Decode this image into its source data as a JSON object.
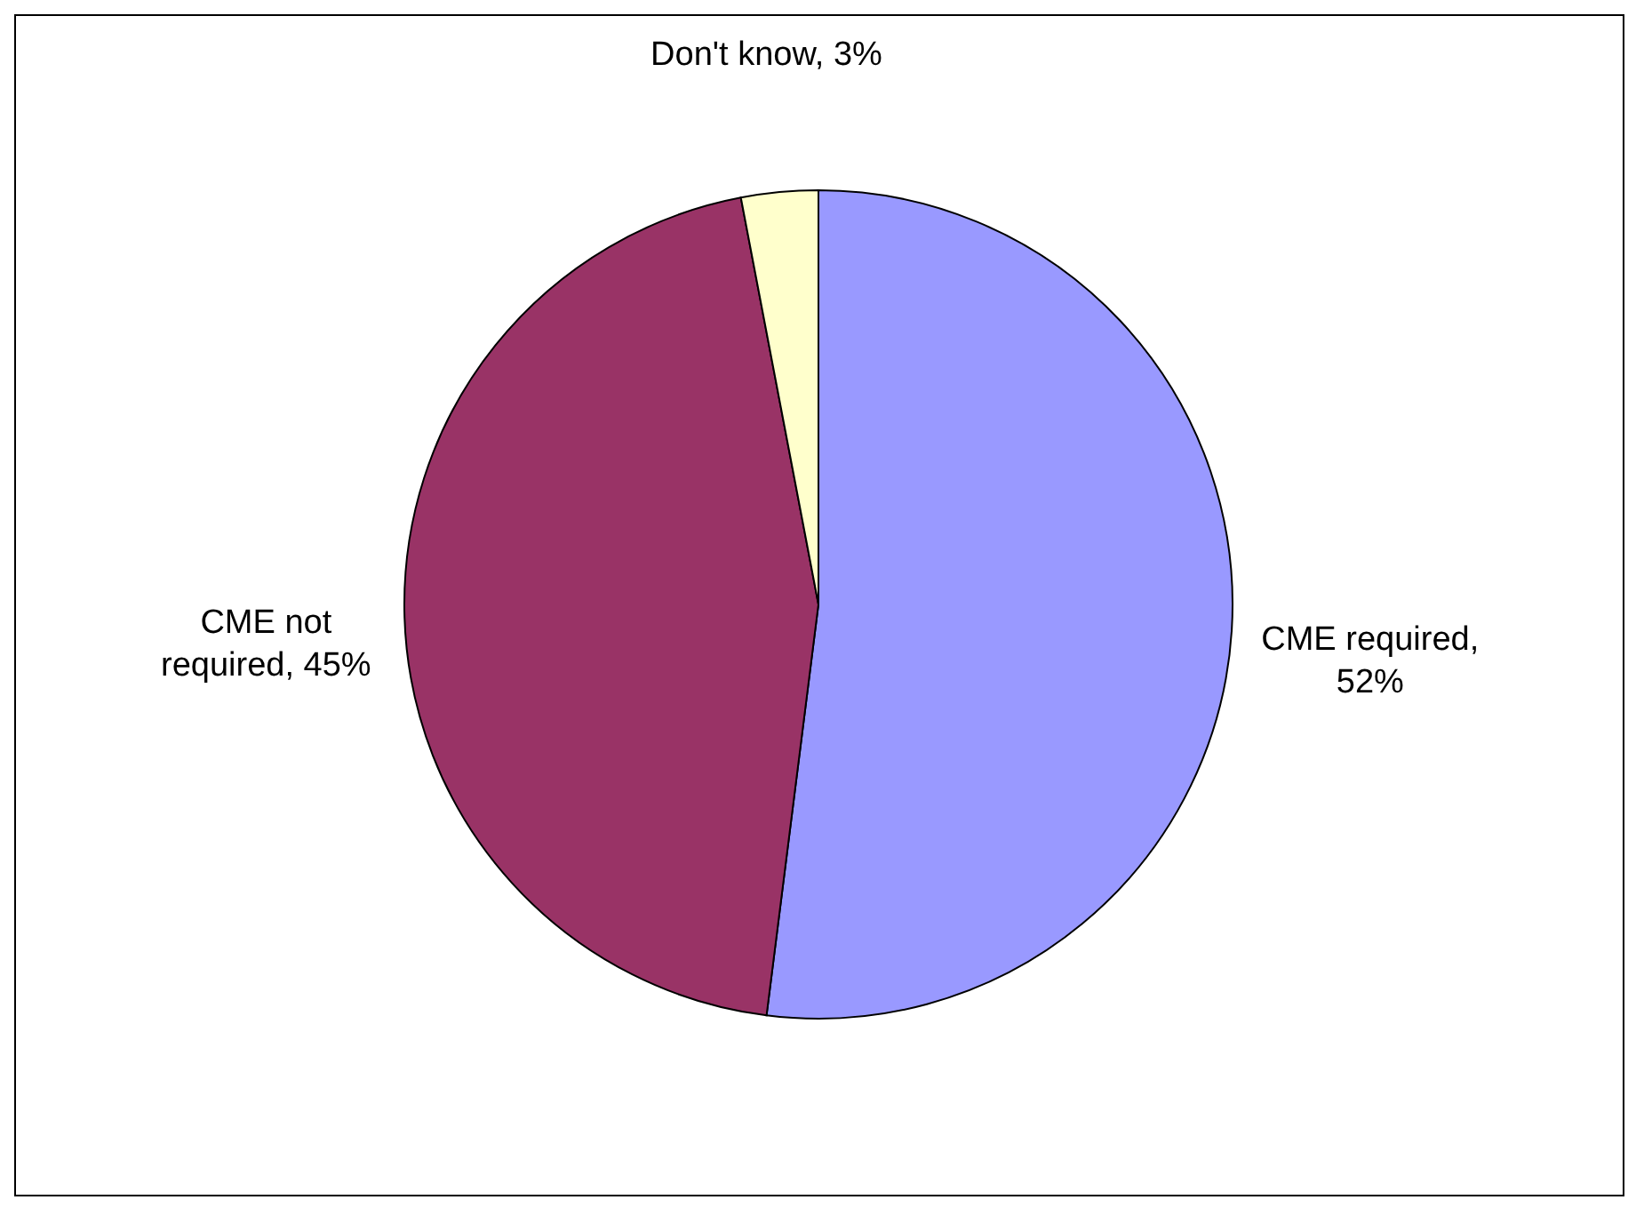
{
  "chart_data": {
    "type": "pie",
    "categories": [
      "CME required, 52%",
      "CME not required, 45%",
      "Don't know, 3%"
    ],
    "values": [
      52,
      45,
      3
    ],
    "colors": [
      "#9999ff",
      "#993366",
      "#ffffcc"
    ],
    "legend": false
  }
}
